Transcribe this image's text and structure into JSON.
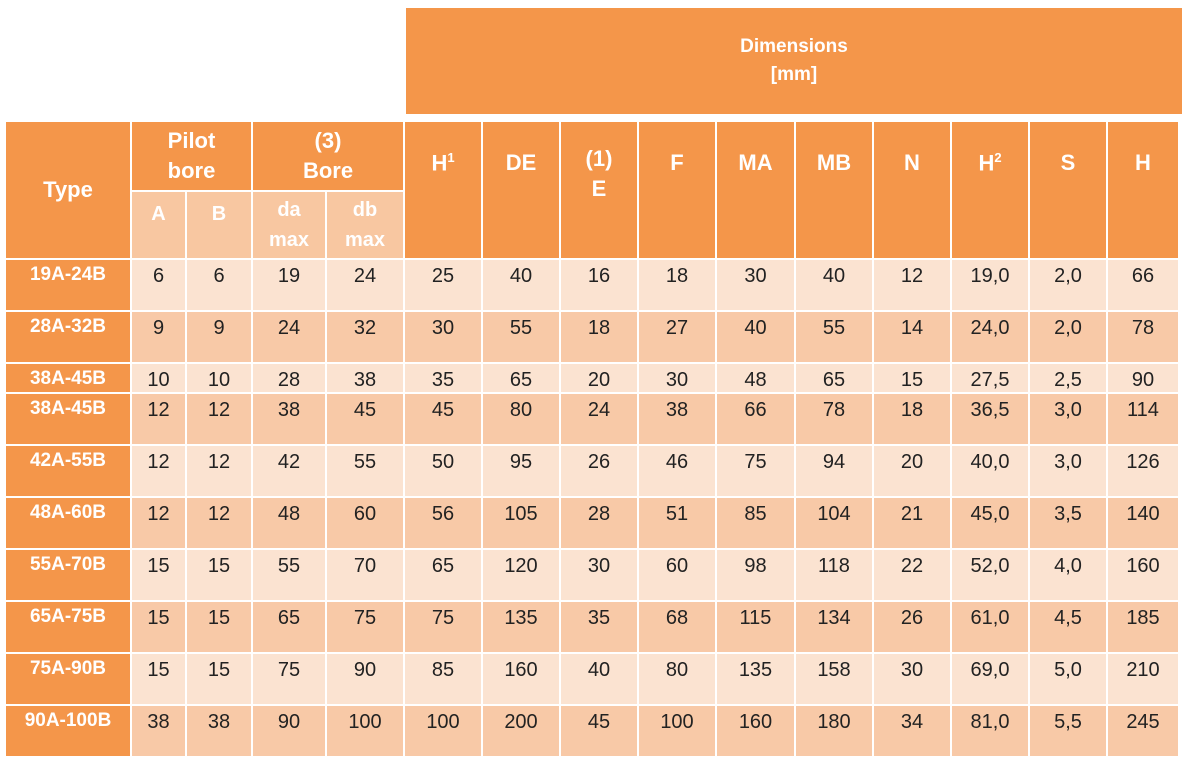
{
  "dimensions_header": {
    "line1": "Dimensions",
    "line2": "[mm]"
  },
  "headers": {
    "type": "Type",
    "pilot_bore": {
      "line1": "Pilot",
      "line2": "bore"
    },
    "bore": {
      "line1": "(3)",
      "line2": "Bore"
    },
    "A": "A",
    "B": "B",
    "da": {
      "line1": "da",
      "line2": "max"
    },
    "db": {
      "line1": "db",
      "line2": "max"
    },
    "H1": {
      "base": "H",
      "sup": "1"
    },
    "DE": "DE",
    "E": {
      "line1": "(1)",
      "line2": "E"
    },
    "F": "F",
    "MA": "MA",
    "MB": "MB",
    "N": "N",
    "H2": {
      "base": "H",
      "sup": "2"
    },
    "S": "S",
    "H": "H"
  },
  "rows": [
    {
      "type": "19A-24B",
      "A": "6",
      "B": "6",
      "da": "19",
      "db": "24",
      "H1": "25",
      "DE": "40",
      "E": "16",
      "F": "18",
      "MA": "30",
      "MB": "40",
      "N": "12",
      "H2": "19,0",
      "S": "2,0",
      "H": "66"
    },
    {
      "type": "28A-32B",
      "A": "9",
      "B": "9",
      "da": "24",
      "db": "32",
      "H1": "30",
      "DE": "55",
      "E": "18",
      "F": "27",
      "MA": "40",
      "MB": "55",
      "N": "14",
      "H2": "24,0",
      "S": "2,0",
      "H": "78"
    },
    {
      "type": "38A-45B",
      "A": "10",
      "B": "10",
      "da": "28",
      "db": "38",
      "H1": "35",
      "DE": "65",
      "E": "20",
      "F": "30",
      "MA": "48",
      "MB": "65",
      "N": "15",
      "H2": "27,5",
      "S": "2,5",
      "H": "90"
    },
    {
      "type": "38A-45B",
      "A": "12",
      "B": "12",
      "da": "38",
      "db": "45",
      "H1": "45",
      "DE": "80",
      "E": "24",
      "F": "38",
      "MA": "66",
      "MB": "78",
      "N": "18",
      "H2": "36,5",
      "S": "3,0",
      "H": "114"
    },
    {
      "type": "42A-55B",
      "A": "12",
      "B": "12",
      "da": "42",
      "db": "55",
      "H1": "50",
      "DE": "95",
      "E": "26",
      "F": "46",
      "MA": "75",
      "MB": "94",
      "N": "20",
      "H2": "40,0",
      "S": "3,0",
      "H": "126"
    },
    {
      "type": "48A-60B",
      "A": "12",
      "B": "12",
      "da": "48",
      "db": "60",
      "H1": "56",
      "DE": "105",
      "E": "28",
      "F": "51",
      "MA": "85",
      "MB": "104",
      "N": "21",
      "H2": "45,0",
      "S": "3,5",
      "H": "140"
    },
    {
      "type": "55A-70B",
      "A": "15",
      "B": "15",
      "da": "55",
      "db": "70",
      "H1": "65",
      "DE": "120",
      "E": "30",
      "F": "60",
      "MA": "98",
      "MB": "118",
      "N": "22",
      "H2": "52,0",
      "S": "4,0",
      "H": "160"
    },
    {
      "type": "65A-75B",
      "A": "15",
      "B": "15",
      "da": "65",
      "db": "75",
      "H1": "75",
      "DE": "135",
      "E": "35",
      "F": "68",
      "MA": "115",
      "MB": "134",
      "N": "26",
      "H2": "61,0",
      "S": "4,5",
      "H": "185"
    },
    {
      "type": "75A-90B",
      "A": "15",
      "B": "15",
      "da": "75",
      "db": "90",
      "H1": "85",
      "DE": "160",
      "E": "40",
      "F": "80",
      "MA": "135",
      "MB": "158",
      "N": "30",
      "H2": "69,0",
      "S": "5,0",
      "H": "210"
    },
    {
      "type": "90A-100B",
      "A": "38",
      "B": "38",
      "da": "90",
      "db": "100",
      "H1": "100",
      "DE": "200",
      "E": "45",
      "F": "100",
      "MA": "160",
      "MB": "180",
      "N": "34",
      "H2": "81,0",
      "S": "5,5",
      "H": "245"
    }
  ]
}
